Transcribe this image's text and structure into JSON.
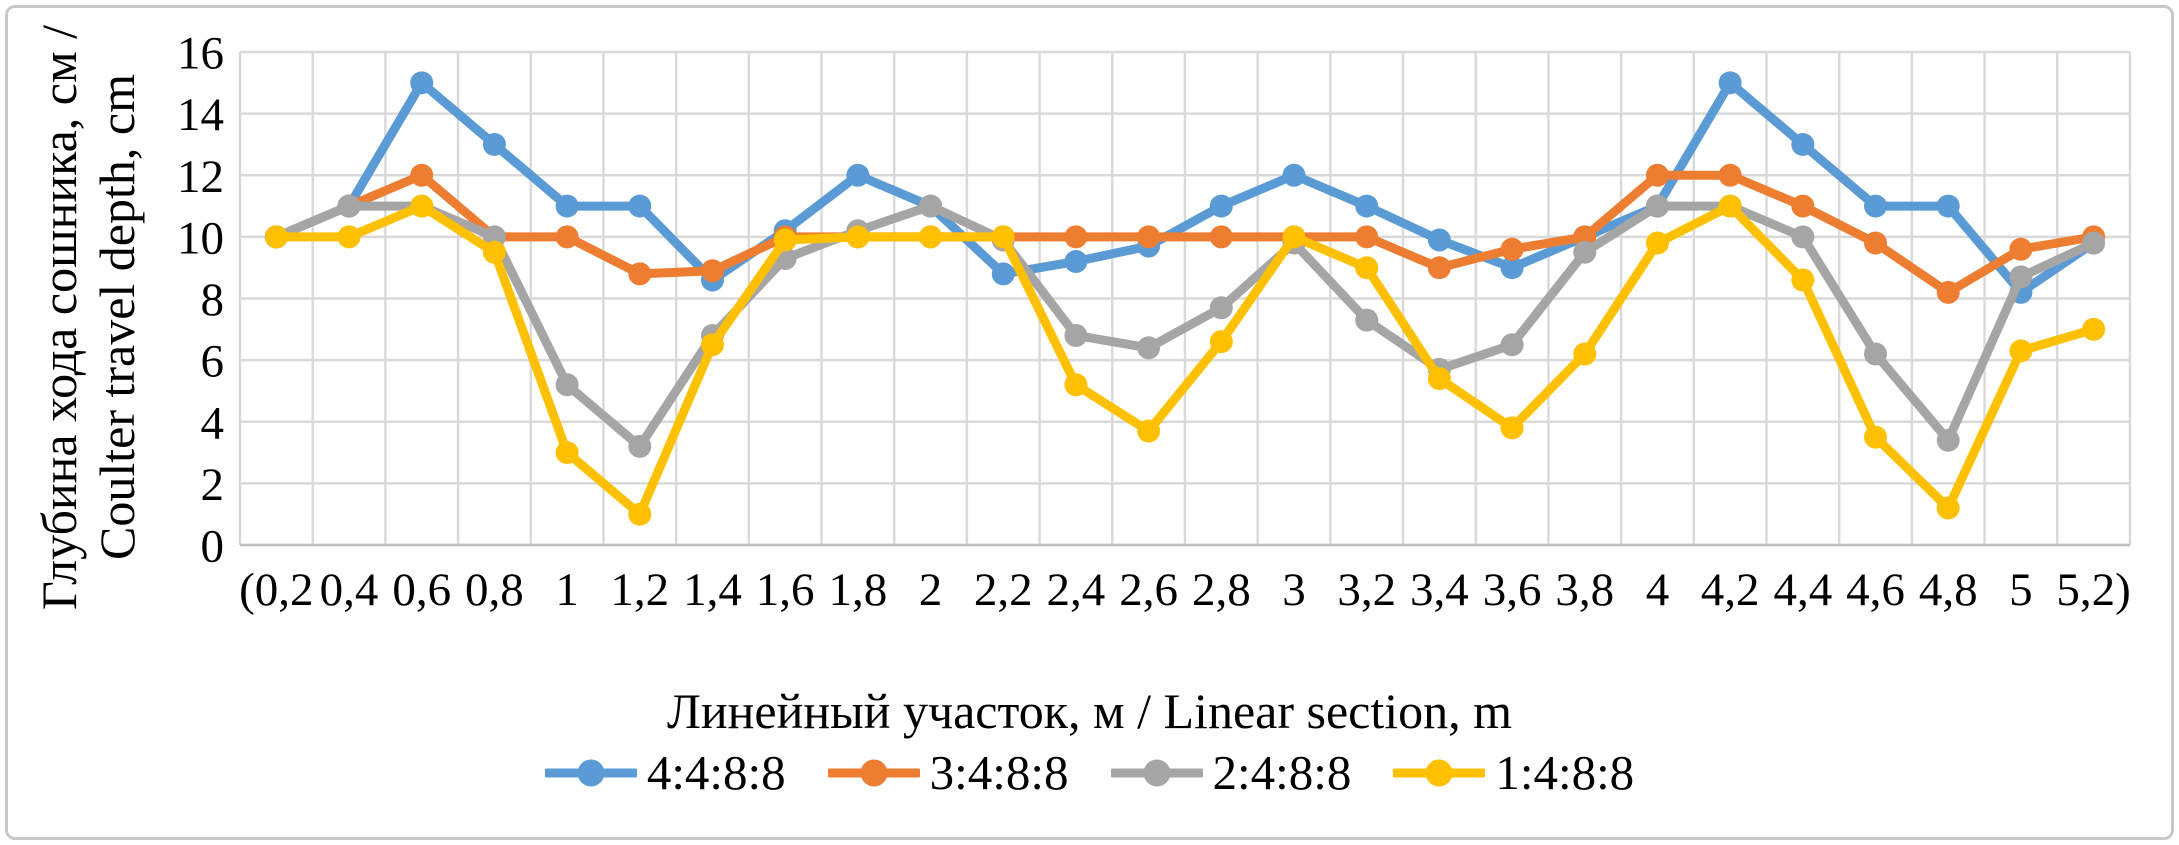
{
  "chart_data": {
    "type": "line",
    "title": "",
    "xlabel": "Линейный участок, м / Linear section, m",
    "ylabel_line1": "Глубина хода сошника, см /",
    "ylabel_line2": "Coulter travel depth, cm",
    "categories": [
      "(0,2",
      "0,4",
      "0,6",
      "0,8",
      "1",
      "1,2",
      "1,4",
      "1,6",
      "1,8",
      "2",
      "2,2",
      "2,4",
      "2,6",
      "2,8",
      "3",
      "3,2",
      "3,4",
      "3,6",
      "3,8",
      "4",
      "4,2",
      "4,4",
      "4,6",
      "4,8",
      "5",
      "5,2)"
    ],
    "y_ticks": [
      0,
      2,
      4,
      6,
      8,
      10,
      12,
      14,
      16
    ],
    "ylim": [
      0,
      16
    ],
    "grid": true,
    "legend_position": "bottom",
    "series": [
      {
        "name": "4:4:8:8",
        "color": "#5B9BD5",
        "values": [
          10,
          11,
          15,
          13,
          11,
          11,
          8.6,
          10.2,
          12,
          11,
          8.8,
          9.2,
          9.7,
          11,
          12,
          11,
          9.9,
          9,
          10,
          11,
          15,
          13,
          11,
          11,
          8.2,
          9.8
        ]
      },
      {
        "name": "3:4:8:8",
        "color": "#ED7D31",
        "values": [
          10,
          11,
          12,
          10,
          10,
          8.8,
          8.9,
          10,
          10,
          10,
          10,
          10,
          10,
          10,
          10,
          10,
          9,
          9.6,
          10,
          12,
          12,
          11,
          9.8,
          8.2,
          9.6,
          10
        ]
      },
      {
        "name": "2:4:8:8",
        "color": "#A5A5A5",
        "values": [
          10,
          11,
          11,
          10,
          5.2,
          3.2,
          6.8,
          9.3,
          10.2,
          11,
          9.9,
          6.8,
          6.4,
          7.7,
          9.8,
          7.3,
          5.7,
          6.5,
          9.5,
          11,
          11,
          10,
          6.2,
          3.4,
          8.7,
          9.8
        ]
      },
      {
        "name": "1:4:8:8",
        "color": "#FFC000",
        "values": [
          10,
          10,
          11,
          9.5,
          3,
          1,
          6.5,
          9.9,
          10,
          10,
          10,
          5.2,
          3.7,
          6.6,
          10,
          9,
          5.4,
          3.8,
          6.2,
          9.8,
          11,
          8.6,
          3.5,
          1.2,
          6.3,
          7
        ]
      }
    ],
    "style_colors": {
      "gridline": "#D9D9D9",
      "axis_line": "#BFBFBF",
      "text": "#000000",
      "chart_border": "#C9C7C7"
    }
  }
}
